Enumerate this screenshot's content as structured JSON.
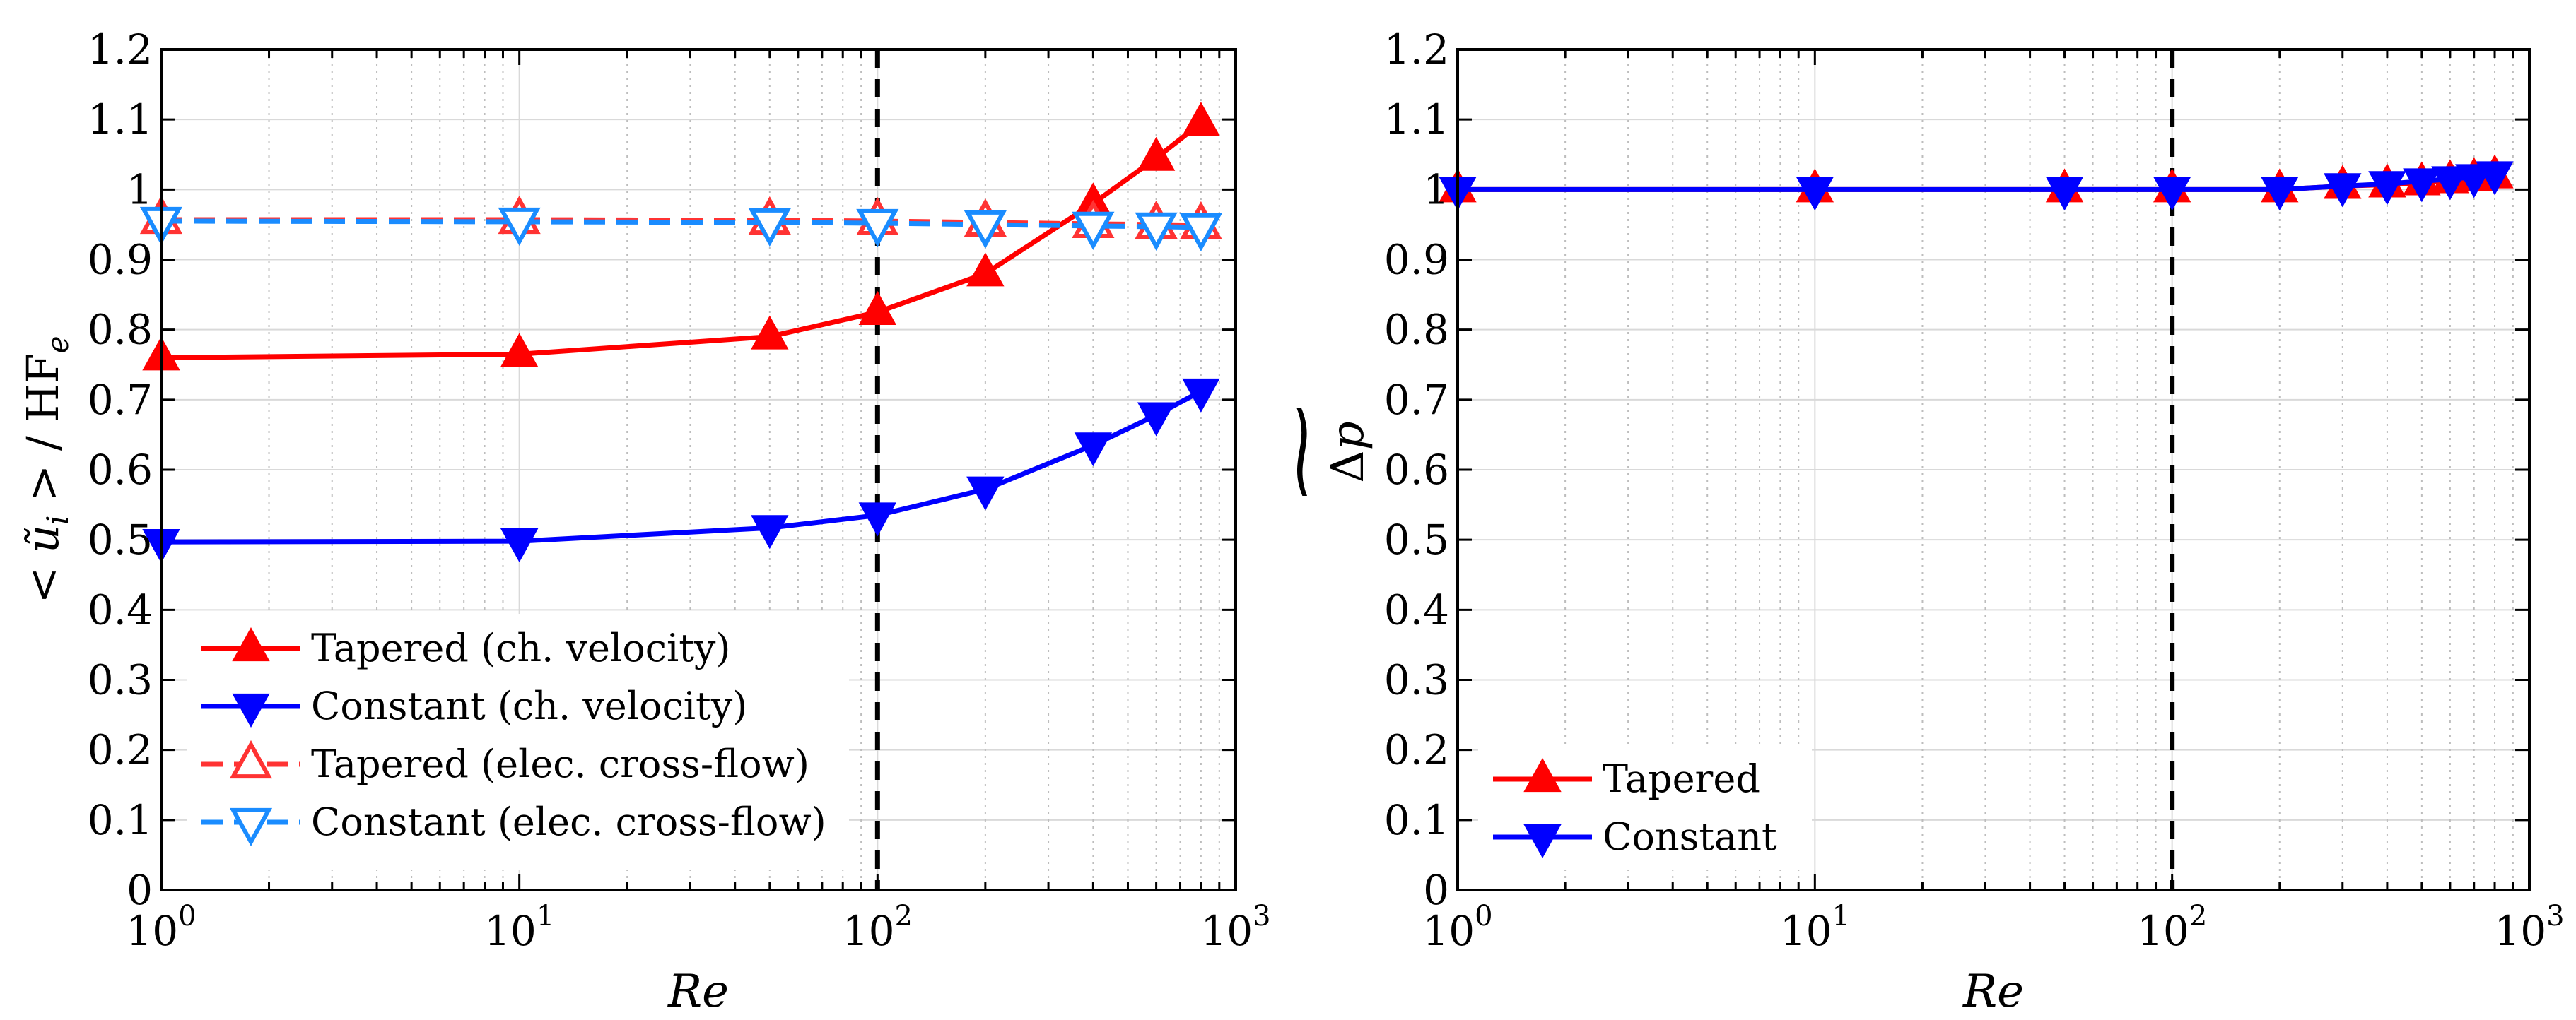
{
  "chart_data": [
    {
      "type": "line",
      "xscale": "log",
      "xlim": [
        1,
        1000
      ],
      "ylim": [
        0,
        1.2
      ],
      "xlabel": "Re",
      "ylabel": "< ũ_i > / HF_e",
      "ylabel_parts": {
        "open": "< ",
        "u": "ũ",
        "sub_i": "i",
        "close": " > / HF",
        "sub_e": "e"
      },
      "x_tick_labels": [
        {
          "base": "10",
          "exp": "0"
        },
        {
          "base": "10",
          "exp": "1"
        },
        {
          "base": "10",
          "exp": "2"
        },
        {
          "base": "10",
          "exp": "3"
        }
      ],
      "y_tick_labels": [
        "0",
        "0.1",
        "0.2",
        "0.3",
        "0.4",
        "0.5",
        "0.6",
        "0.7",
        "0.8",
        "0.9",
        "1",
        "1.1",
        "1.2"
      ],
      "grid": true,
      "vline_x": 100,
      "legend_position": "bottom-left",
      "series": [
        {
          "name": "Tapered (ch. velocity)",
          "color": "#ff0000",
          "marker": "triangle-up",
          "filled": true,
          "dashed": false,
          "x": [
            1,
            10,
            50,
            100,
            200,
            400,
            600,
            800
          ],
          "y": [
            0.76,
            0.765,
            0.79,
            0.825,
            0.88,
            0.98,
            1.045,
            1.095
          ]
        },
        {
          "name": "Constant (ch. velocity)",
          "color": "#0000ff",
          "marker": "triangle-down",
          "filled": true,
          "dashed": false,
          "x": [
            1,
            10,
            50,
            100,
            200,
            400,
            600,
            800
          ],
          "y": [
            0.497,
            0.498,
            0.517,
            0.535,
            0.572,
            0.635,
            0.678,
            0.712
          ]
        },
        {
          "name": "Tapered (elec. cross-flow)",
          "color": "#ff3333",
          "marker": "triangle-up",
          "filled": false,
          "dashed": true,
          "x": [
            1,
            10,
            50,
            100,
            200,
            400,
            600,
            800
          ],
          "y": [
            0.957,
            0.957,
            0.956,
            0.955,
            0.953,
            0.951,
            0.95,
            0.949
          ]
        },
        {
          "name": "Constant (elec. cross-flow)",
          "color": "#1a8cff",
          "marker": "triangle-down",
          "filled": false,
          "dashed": true,
          "x": [
            1,
            10,
            50,
            100,
            200,
            400,
            600,
            800
          ],
          "y": [
            0.955,
            0.954,
            0.953,
            0.952,
            0.95,
            0.948,
            0.947,
            0.946
          ]
        }
      ]
    },
    {
      "type": "line",
      "xscale": "log",
      "xlim": [
        1,
        1000
      ],
      "ylim": [
        0,
        1.2
      ],
      "xlabel": "Re",
      "ylabel": "Δp (tilde)",
      "ylabel_parts": {
        "delta": "Δ",
        "p": "p",
        "tilde": "~"
      },
      "x_tick_labels": [
        {
          "base": "10",
          "exp": "0"
        },
        {
          "base": "10",
          "exp": "1"
        },
        {
          "base": "10",
          "exp": "2"
        },
        {
          "base": "10",
          "exp": "3"
        }
      ],
      "y_tick_labels": [
        "0",
        "0.1",
        "0.2",
        "0.3",
        "0.4",
        "0.5",
        "0.6",
        "0.7",
        "0.8",
        "0.9",
        "1",
        "1.1",
        "1.2"
      ],
      "grid": true,
      "vline_x": 100,
      "legend_position": "bottom-left",
      "series": [
        {
          "name": "Tapered",
          "color": "#ff0000",
          "marker": "triangle-up",
          "filled": true,
          "dashed": false,
          "x": [
            1,
            10,
            50,
            100,
            200,
            300,
            400,
            500,
            600,
            700,
            800
          ],
          "y": [
            1.0,
            1.0,
            1.0,
            1.0,
            1.0,
            1.005,
            1.007,
            1.01,
            1.013,
            1.016,
            1.02
          ]
        },
        {
          "name": "Constant",
          "color": "#0000ff",
          "marker": "triangle-down",
          "filled": true,
          "dashed": false,
          "x": [
            1,
            10,
            50,
            100,
            200,
            300,
            400,
            500,
            600,
            700,
            800
          ],
          "y": [
            1.0,
            1.0,
            1.0,
            1.0,
            1.0,
            1.005,
            1.008,
            1.012,
            1.015,
            1.018,
            1.022
          ]
        }
      ]
    }
  ]
}
